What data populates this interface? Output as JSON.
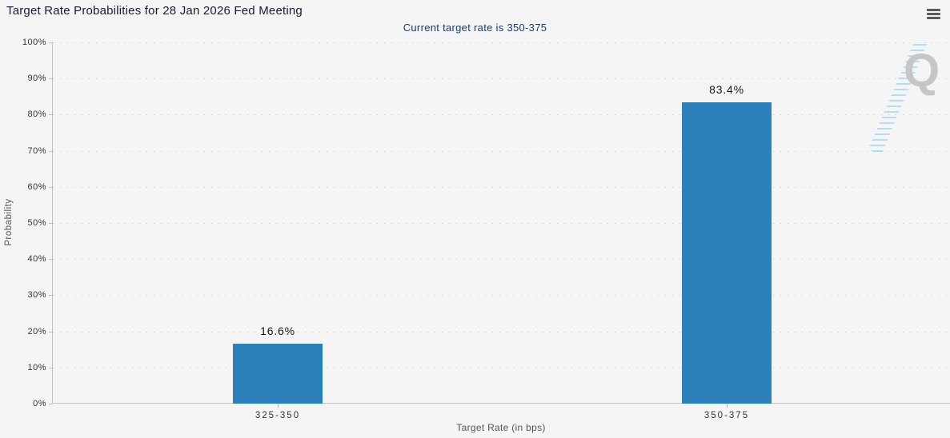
{
  "header": {
    "title": "Target Rate Probabilities for 28 Jan 2026 Fed Meeting",
    "subtitle": "Current target rate is 350-375",
    "menu_icon": "hamburger-icon"
  },
  "watermark": {
    "letter": "Q"
  },
  "chart_data": {
    "type": "bar",
    "title": "Target Rate Probabilities for 28 Jan 2026 Fed Meeting",
    "subtitle": "Current target rate is 350-375",
    "categories": [
      "325-350",
      "350-375"
    ],
    "values": [
      16.6,
      83.4
    ],
    "value_labels": [
      "16.6%",
      "83.4%"
    ],
    "xlabel": "Target Rate (in bps)",
    "ylabel": "Probability",
    "ylim": [
      0,
      100
    ],
    "ytick_labels": [
      "0%",
      "10%",
      "20%",
      "30%",
      "40%",
      "50%",
      "60%",
      "70%",
      "80%",
      "90%",
      "100%"
    ],
    "grid": "dotted-horizontal",
    "legend": "none",
    "bar_color": "#2b80ba"
  },
  "colors": {
    "background": "#f5f5f6",
    "bar": "#2b80ba",
    "title_text": "#1a1a2e",
    "subtitle_text": "#1d3b63",
    "axis_line": "#c4c4c8",
    "grid_dots": "#c6c6c6",
    "tick_label": "#333333",
    "axis_title": "#555555",
    "menu_icon": "#5a5a5e",
    "watermark_q": "#c4c6c8",
    "watermark_stripes": "#80cce8"
  }
}
